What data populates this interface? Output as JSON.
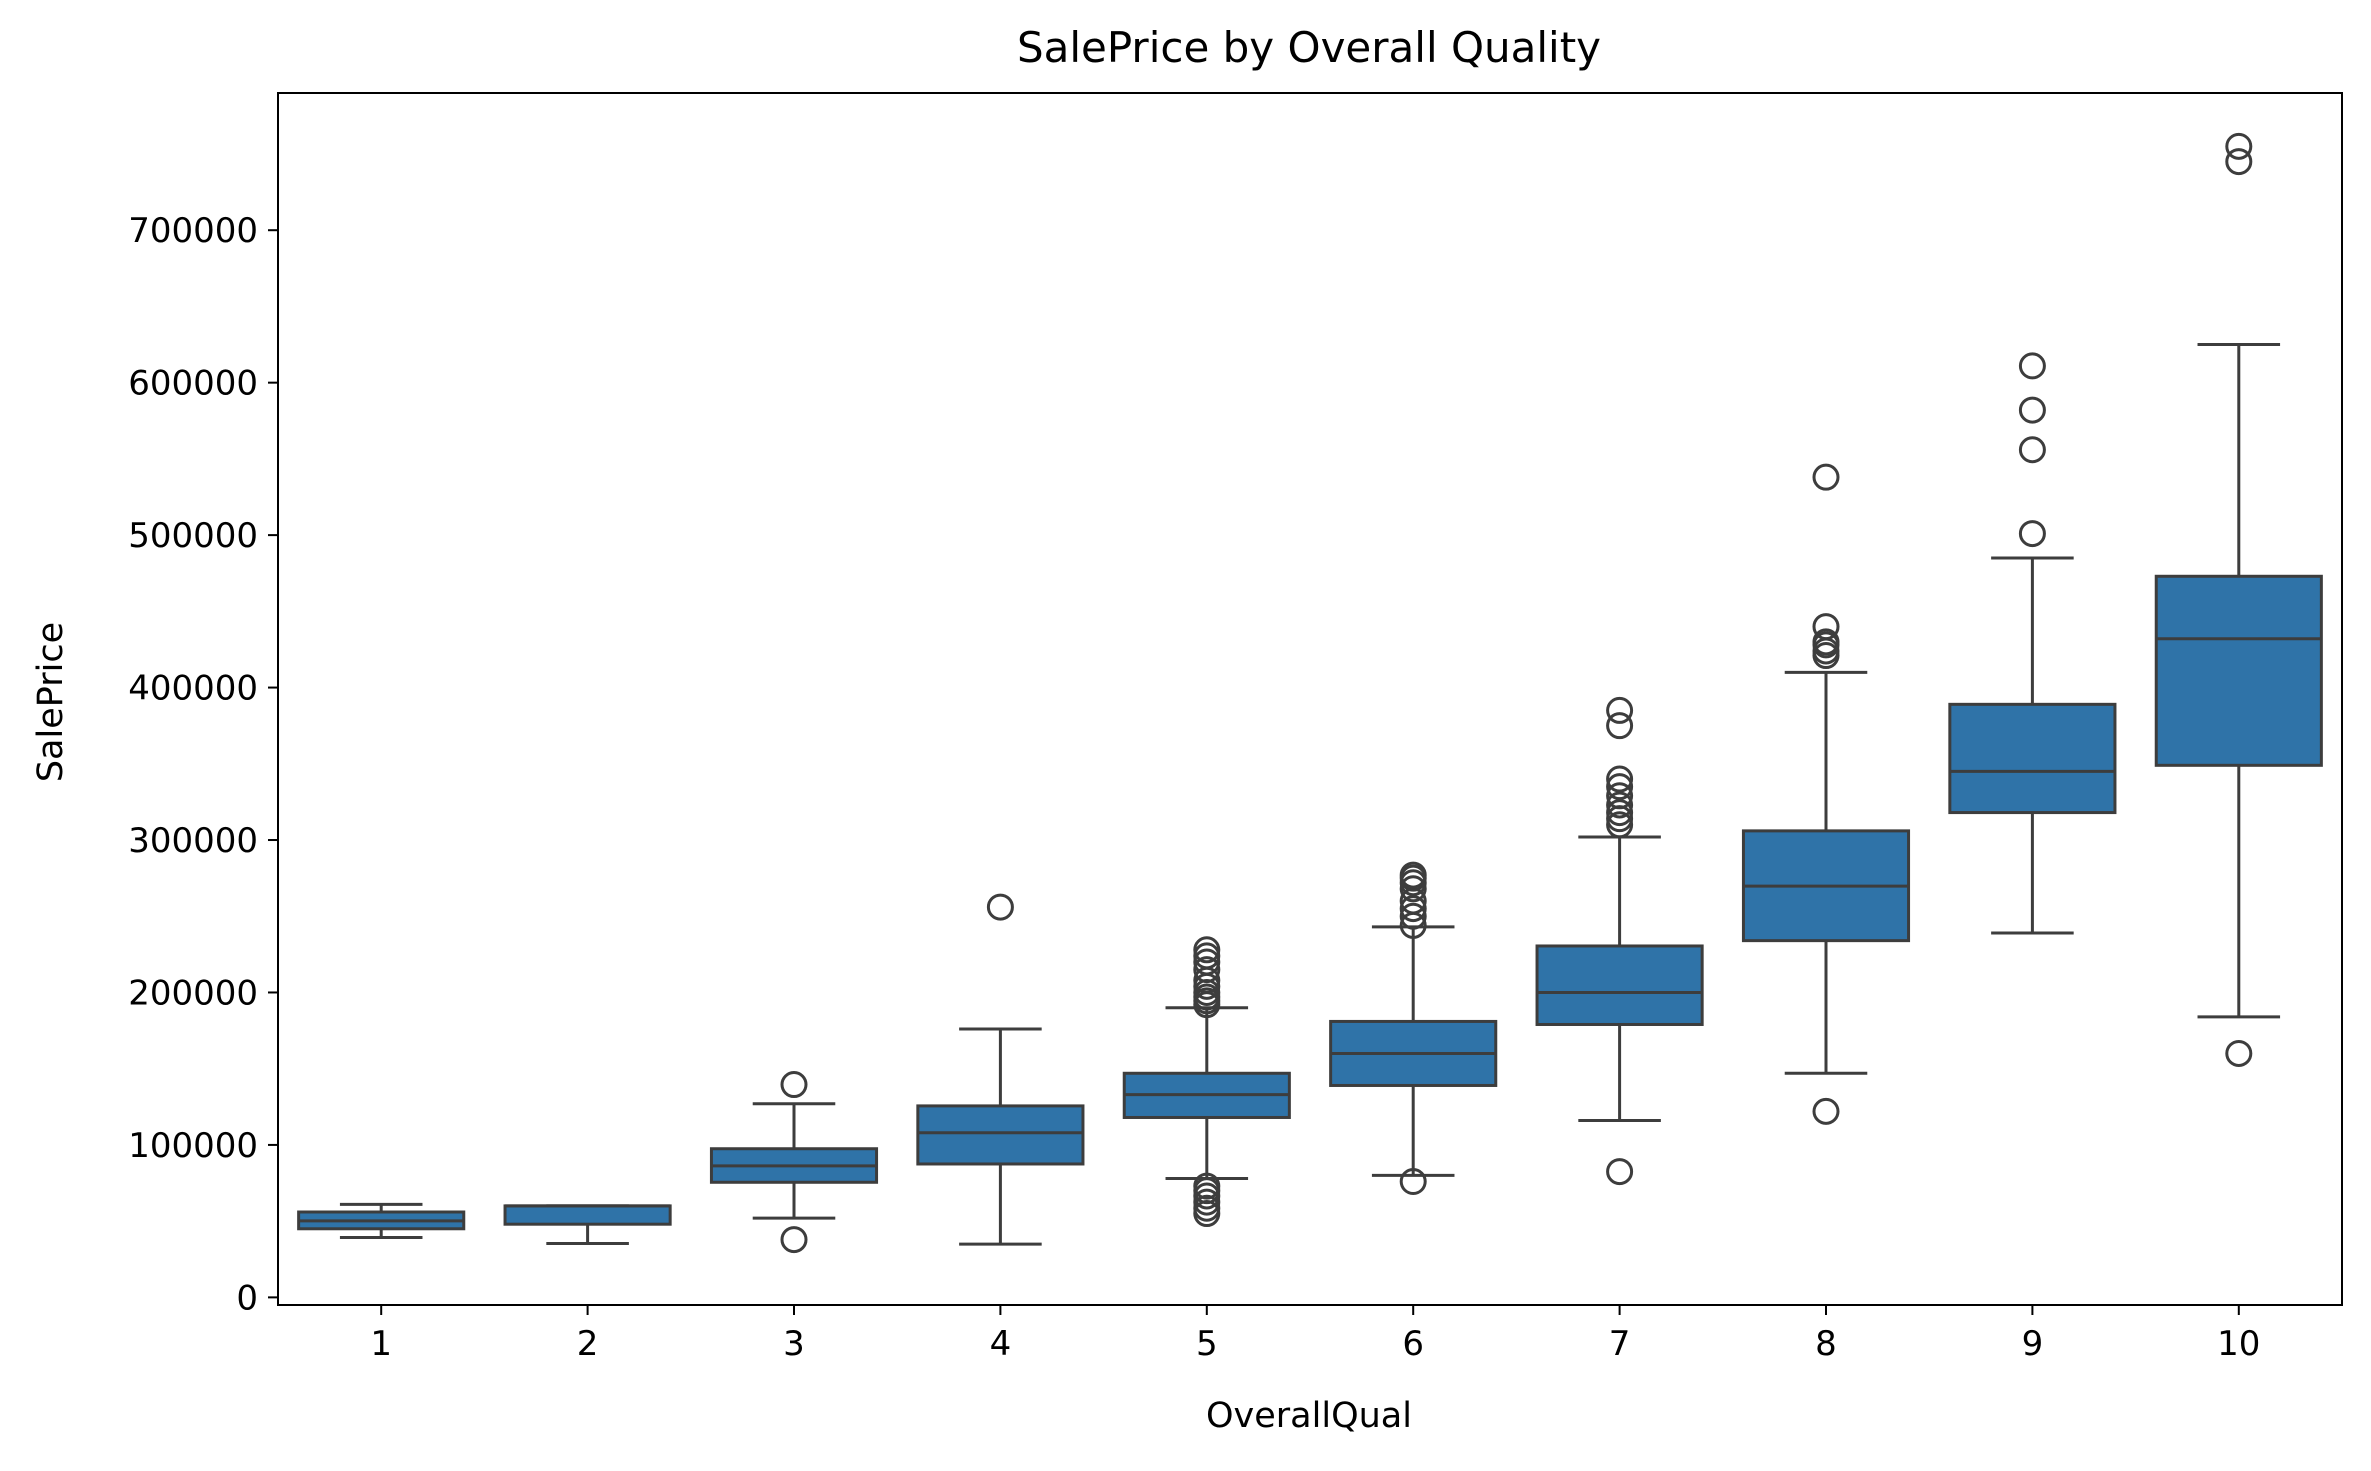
{
  "chart_data": {
    "type": "box",
    "title": "SalePrice by Overall Quality",
    "xlabel": "OverallQual",
    "ylabel": "SalePrice",
    "ylim": [
      -5000,
      790000
    ],
    "yticks": [
      0,
      100000,
      200000,
      300000,
      400000,
      500000,
      600000,
      700000
    ],
    "categories": [
      "1",
      "2",
      "3",
      "4",
      "5",
      "6",
      "7",
      "8",
      "9",
      "10"
    ],
    "box_color": "#2f73a8",
    "line_color": "#3d3d3d",
    "grid": false,
    "boxes": [
      {
        "category": "1",
        "whisker_low": 39300,
        "q1": 45000,
        "median": 50150,
        "q3": 56000,
        "whisker_high": 61000,
        "outliers": []
      },
      {
        "category": "2",
        "whisker_low": 35300,
        "q1": 48000,
        "median": 60000,
        "q3": 60000,
        "whisker_high": 60000,
        "outliers": []
      },
      {
        "category": "3",
        "whisker_low": 52000,
        "q1": 75500,
        "median": 86250,
        "q3": 97500,
        "whisker_high": 127000,
        "outliers": [
          37900,
          139600
        ]
      },
      {
        "category": "4",
        "whisker_low": 34900,
        "q1": 87500,
        "median": 108000,
        "q3": 125600,
        "whisker_high": 176000,
        "outliers": [
          256000
        ]
      },
      {
        "category": "5",
        "whisker_low": 78000,
        "q1": 118000,
        "median": 133000,
        "q3": 147000,
        "whisker_high": 190000,
        "outliers": [
          55000,
          58500,
          62500,
          66500,
          70000,
          73000,
          192000,
          194500,
          197000,
          200000,
          204000,
          208000,
          215000,
          220000,
          224000,
          228000
        ]
      },
      {
        "category": "6",
        "whisker_low": 80000,
        "q1": 139000,
        "median": 160000,
        "q3": 181000,
        "whisker_high": 243000,
        "outliers": [
          76000,
          244000,
          250000,
          255000,
          260000,
          268000,
          272000,
          275000,
          277000
        ]
      },
      {
        "category": "7",
        "whisker_low": 116000,
        "q1": 179000,
        "median": 200000,
        "q3": 230500,
        "whisker_high": 302000,
        "outliers": [
          82500,
          310000,
          314000,
          318000,
          323000,
          329000,
          335000,
          340000,
          375000,
          385000
        ]
      },
      {
        "category": "8",
        "whisker_low": 147000,
        "q1": 234000,
        "median": 269750,
        "q3": 306000,
        "whisker_high": 410000,
        "outliers": [
          122000,
          421000,
          424000,
          428000,
          430000,
          440000,
          538000
        ]
      },
      {
        "category": "9",
        "whisker_low": 239000,
        "q1": 318000,
        "median": 345000,
        "q3": 389000,
        "whisker_high": 485000,
        "outliers": [
          501000,
          556000,
          582000,
          611000
        ]
      },
      {
        "category": "10",
        "whisker_low": 184000,
        "q1": 349000,
        "median": 432000,
        "q3": 473000,
        "whisker_high": 625000,
        "outliers": [
          160000,
          745000,
          755000
        ]
      }
    ]
  }
}
